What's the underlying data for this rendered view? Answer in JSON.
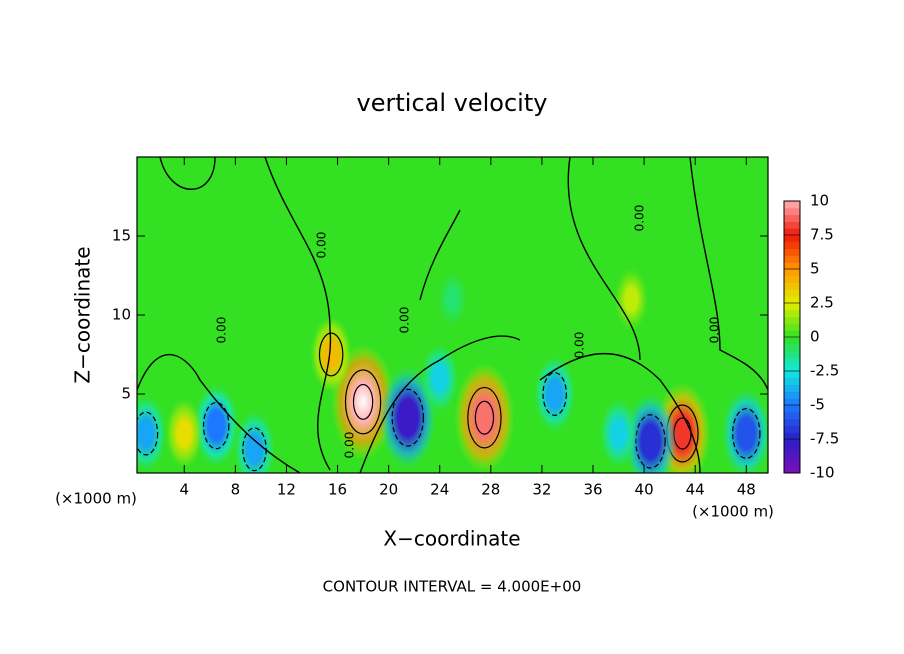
{
  "chart_data": {
    "type": "contour",
    "title": "vertical velocity",
    "x_label": "X−coordinate",
    "y_label": "Z−coordinate",
    "x_unit": "(×1000 m)",
    "note": "CONTOUR INTERVAL = 4.000E+00",
    "contour_label": "0.00",
    "xlim": [
      0.3,
      49.7
    ],
    "ylim": [
      0,
      20
    ],
    "xticks": [
      4,
      8,
      12,
      16,
      20,
      24,
      28,
      32,
      36,
      40,
      44,
      48
    ],
    "yticks": [
      5,
      10,
      15
    ],
    "background_color": "#33e022",
    "colorbar_ticks": [
      -10,
      -7.5,
      -5,
      -2.5,
      0,
      2.5,
      5,
      7.5,
      10
    ],
    "colormap": [
      "#7a10b8",
      "#2a1ec8",
      "#1e78ff",
      "#10e8e0",
      "#33e022",
      "#e0f000",
      "#ff9800",
      "#f01808",
      "#ffb0b0"
    ],
    "features": [
      {
        "x": 18,
        "z": 4.5,
        "value": 10
      },
      {
        "x": 27.5,
        "z": 3.5,
        "value": 9
      },
      {
        "x": 43,
        "z": 2.5,
        "value": 8
      },
      {
        "x": 21.5,
        "z": 3.5,
        "value": -8
      },
      {
        "x": 40.5,
        "z": 2,
        "value": -7
      },
      {
        "x": 6.5,
        "z": 3,
        "value": -5
      },
      {
        "x": 48,
        "z": 2.5,
        "value": -6
      },
      {
        "x": 9.5,
        "z": 1.5,
        "value": -4
      },
      {
        "x": 1,
        "z": 2.5,
        "value": -4
      },
      {
        "x": 33,
        "z": 5,
        "value": -4
      },
      {
        "x": 24,
        "z": 6,
        "value": -3
      },
      {
        "x": 38,
        "z": 2.5,
        "value": -3
      },
      {
        "x": 4,
        "z": 2.5,
        "value": 3
      },
      {
        "x": 15.5,
        "z": 7.5,
        "value": 4
      },
      {
        "x": 39,
        "z": 11,
        "value": 2
      },
      {
        "x": 25,
        "z": 11,
        "value": -1
      }
    ]
  }
}
